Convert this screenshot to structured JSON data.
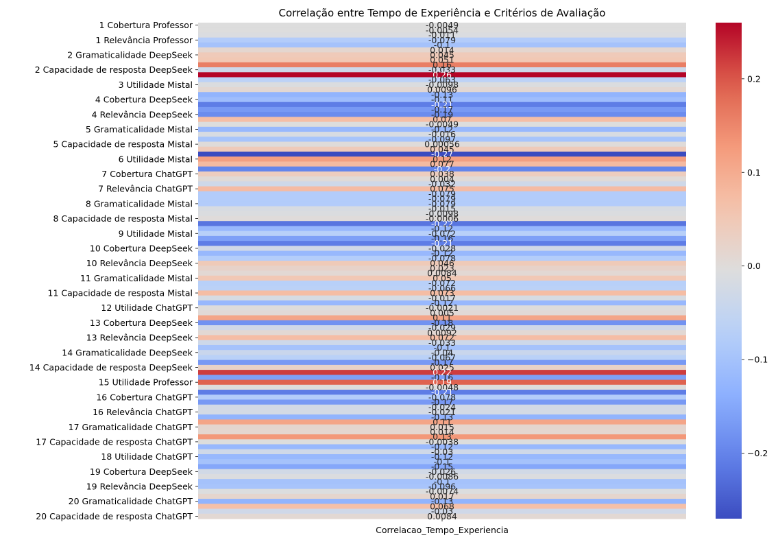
{
  "chart_data": {
    "type": "heatmap",
    "title": "Correlação entre Tempo de Experiência e Critérios de Avaliação",
    "xlabel": "",
    "ylabel": "",
    "colormap": "coolwarm",
    "x_categories": [
      "Correlacao_Tempo_Experiencia"
    ],
    "y_tick_labels": [
      "1 Cobertura Professor",
      "1 Relevância Professor",
      "2 Gramaticalidade DeepSeek ",
      "2 Capacidade de resposta DeepSeek ",
      "3 Utilidade Mistal",
      "4 Cobertura DeepSeek ",
      "4 Relevância DeepSeek ",
      "5 Gramaticalidade Mistal",
      "5 Capacidade de resposta Mistal",
      "6 Utilidade Mistal",
      "7 Cobertura ChatGPT",
      "7 Relevância ChatGPT",
      "8 Gramaticalidade Mistal",
      "8 Capacidade de resposta Mistal",
      "9 Utilidade Mistal",
      "10 Cobertura DeepSeek ",
      "10 Relevância DeepSeek ",
      "11 Gramaticalidade Mistal",
      "11 Capacidade de resposta Mistal",
      "12 Utilidade ChatGPT",
      "13 Cobertura DeepSeek ",
      "13 Relevância DeepSeek ",
      "14 Gramaticalidade DeepSeek ",
      "14 Capacidade de resposta DeepSeek ",
      "15 Utilidade Professor",
      "16 Cobertura ChatGPT",
      "16 Relevância ChatGPT",
      "17 Gramaticalidade ChatGPT",
      "17 Capacidade de resposta ChatGPT",
      "18 Utilidade ChatGPT",
      "19 Cobertura DeepSeek ",
      "19 Relevância DeepSeek ",
      "20 Gramaticalidade ChatGPT",
      "20 Capacidade de resposta ChatGPT"
    ],
    "row_count": 100,
    "values": [
      -0.0049,
      -0.0054,
      -0.011,
      -0.079,
      -0.1,
      0.014,
      0.045,
      0.051,
      0.16,
      -0.033,
      0.26,
      -0.063,
      -0.0098,
      0.0096,
      -0.13,
      -0.11,
      -0.21,
      -0.17,
      -0.19,
      0.07,
      -0.0049,
      -0.12,
      -0.016,
      -0.097,
      0.00056,
      0.045,
      -0.27,
      0.12,
      0.077,
      -0.2,
      0.038,
      0.004,
      -0.032,
      0.075,
      -0.079,
      -0.079,
      -0.079,
      -0.015,
      -0.0098,
      -0.0006,
      -0.22,
      -0.12,
      -0.072,
      -0.16,
      -0.21,
      -0.028,
      -0.12,
      -0.078,
      0.046,
      0.023,
      0.0084,
      0.05,
      -0.072,
      -0.066,
      0.073,
      -0.017,
      -0.12,
      -0.0021,
      0.005,
      0.11,
      -0.18,
      -0.029,
      0.0092,
      0.072,
      -0.033,
      -0.1,
      -0.04,
      -0.067,
      -0.17,
      0.025,
      0.22,
      -0.16,
      0.19,
      -0.0048,
      -0.21,
      -0.078,
      -0.17,
      -0.024,
      -0.021,
      -0.13,
      0.11,
      0.015,
      0.014,
      0.13,
      -0.0038,
      -0.12,
      -0.03,
      -0.12,
      -0.1,
      -0.15,
      -0.026,
      -0.0086,
      -0.1,
      -0.096,
      -0.0074,
      0.017,
      -0.13,
      0.068,
      -0.03,
      0.0084
    ],
    "value_labels": [
      "-0.0049",
      "-0.0054",
      "-0.011",
      "-0.079",
      "-0.1",
      "0.014",
      "0.045",
      "0.051",
      "0.16",
      "-0.033",
      "0.26",
      "-0.063",
      "-0.0098",
      "0.0096",
      "-0.13",
      "-0.11",
      "-0.21",
      "-0.17",
      "-0.19",
      "0.07",
      "-0.0049",
      "-0.12",
      "-0.016",
      "-0.097",
      "0.00056",
      "0.045",
      "-0.27",
      "0.12",
      "0.077",
      "-0.2",
      "0.038",
      "0.004",
      "-0.032",
      "0.075",
      "-0.079",
      "-0.079",
      "-0.079",
      "-0.015",
      "-0.0098",
      "-0.0006",
      "-0.22",
      "-0.12",
      "-0.072",
      "-0.16",
      "-0.21",
      "-0.028",
      "-0.12",
      "-0.078",
      "0.046",
      "0.023",
      "0.0084",
      "0.05",
      "-0.072",
      "-0.066",
      "0.073",
      "-0.017",
      "-0.12",
      "-0.0021",
      "0.005",
      "0.11",
      "-0.18",
      "-0.029",
      "0.0092",
      "0.072",
      "-0.033",
      "-0.1",
      "-0.04",
      "-0.067",
      "-0.17",
      "0.025",
      "0.22",
      "-0.16",
      "0.19",
      "-0.0048",
      "-0.21",
      "-0.078",
      "-0.17",
      "-0.024",
      "-0.021",
      "-0.13",
      "0.11",
      "0.015",
      "0.014",
      "0.13",
      "-0.0038",
      "-0.12",
      "-0.03",
      "-0.12",
      "-0.1",
      "-0.15",
      "-0.026",
      "-0.0086",
      "-0.1",
      "-0.096",
      "-0.0074",
      "0.017",
      "-0.13",
      "0.068",
      "-0.03",
      "0.0084"
    ],
    "colorbar": {
      "vmin": -0.27,
      "vmax": 0.26,
      "ticks": [
        -0.2,
        -0.1,
        0.0,
        0.1,
        0.2
      ],
      "tick_labels": [
        "−0.2",
        "−0.1",
        "0.0",
        "0.1",
        "0.2"
      ]
    }
  }
}
